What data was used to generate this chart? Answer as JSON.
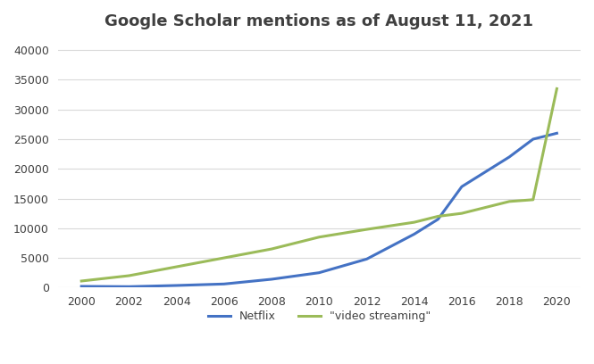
{
  "title": "Google Scholar mentions as of August 11, 2021",
  "netflix": {
    "label": "Netflix",
    "color": "#4472C4",
    "years": [
      2000,
      2002,
      2004,
      2006,
      2008,
      2010,
      2012,
      2014,
      2015,
      2016,
      2018,
      2019,
      2020
    ],
    "values": [
      200,
      150,
      350,
      600,
      1400,
      2500,
      4800,
      9000,
      11500,
      17000,
      22000,
      25000,
      26000
    ]
  },
  "video_streaming": {
    "label": "\"video streaming\"",
    "color": "#9BBB59",
    "years": [
      2000,
      2002,
      2004,
      2006,
      2008,
      2010,
      2012,
      2014,
      2015,
      2016,
      2018,
      2019,
      2020
    ],
    "values": [
      1100,
      2000,
      3500,
      5000,
      6500,
      8500,
      9800,
      11000,
      12000,
      12500,
      14500,
      14800,
      33500
    ]
  },
  "ylim": [
    0,
    42000
  ],
  "yticks": [
    0,
    5000,
    10000,
    15000,
    20000,
    25000,
    30000,
    35000,
    40000
  ],
  "xticks": [
    2000,
    2002,
    2004,
    2006,
    2008,
    2010,
    2012,
    2014,
    2016,
    2018,
    2020
  ],
  "background_color": "#FFFFFF",
  "plot_bg_color": "#F2F2F2",
  "grid_color": "#D9D9D9",
  "title_color": "#404040",
  "title_fontsize": 13,
  "tick_fontsize": 9
}
